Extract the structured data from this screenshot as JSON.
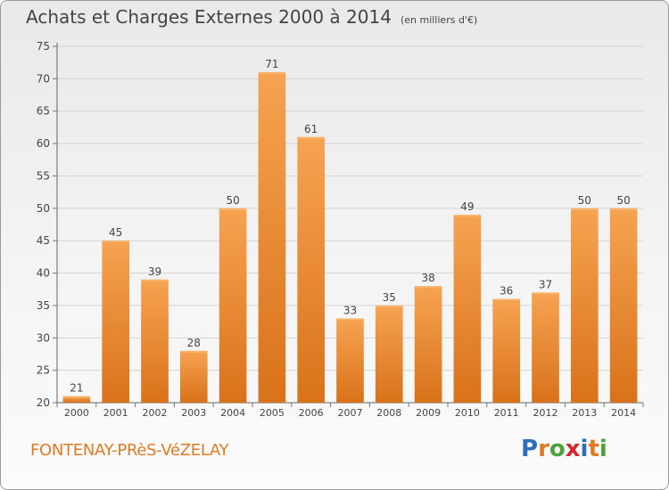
{
  "title": "Achats et Charges Externes 2000 à 2014",
  "unit_note": "(en milliers d'€)",
  "commune": "FONTENAY-PRèS-VéZELAY",
  "logo": {
    "text": "Proxiti",
    "letters": [
      "P",
      "r",
      "o",
      "x",
      "i",
      "t",
      "i"
    ],
    "colors": [
      "#2f6fb8",
      "#e07b22",
      "#4aa33b",
      "#d9262c",
      "#2f6fb8",
      "#e07b22",
      "#4aa33b"
    ]
  },
  "chart_data": {
    "type": "bar",
    "categories": [
      "2000",
      "2001",
      "2002",
      "2003",
      "2004",
      "2005",
      "2006",
      "2007",
      "2008",
      "2009",
      "2010",
      "2011",
      "2012",
      "2013",
      "2014"
    ],
    "values": [
      21,
      45,
      39,
      28,
      50,
      71,
      61,
      33,
      35,
      38,
      49,
      36,
      37,
      50,
      50
    ],
    "title": "Achats et Charges Externes 2000 à 2014",
    "xlabel": "",
    "ylabel": "",
    "ylim": [
      20,
      75
    ],
    "yticks": [
      20,
      25,
      30,
      35,
      40,
      45,
      50,
      55,
      60,
      65,
      70,
      75
    ],
    "grid": true,
    "bar_color": "#f08a2a"
  }
}
